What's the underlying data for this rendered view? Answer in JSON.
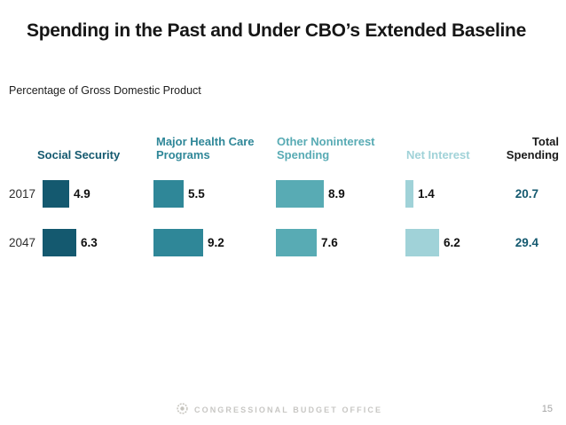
{
  "chart_data": {
    "type": "bar",
    "orientation": "horizontal",
    "title": "Spending in the Past and Under CBO’s Extended Baseline",
    "unit_label": "Percentage of Gross Domestic Product",
    "categories": [
      "2017",
      "2047"
    ],
    "series": [
      {
        "name": "Social Security",
        "color": "#14596F",
        "values": [
          4.9,
          6.3
        ]
      },
      {
        "name": "Major Health Care Programs",
        "color": "#2F8798",
        "values": [
          5.5,
          9.2
        ]
      },
      {
        "name": "Other Noninterest Spending",
        "color": "#58ABB4",
        "values": [
          8.9,
          7.6
        ]
      },
      {
        "name": "Net Interest",
        "color": "#A0D2D8",
        "values": [
          1.4,
          6.2
        ]
      }
    ],
    "totals": {
      "name": "Total Spending",
      "color": "#14596F",
      "values": [
        20.7,
        29.4
      ]
    },
    "value_labels": true,
    "axes": "none",
    "legend": "none"
  },
  "footer": {
    "org_name": "CONGRESSIONAL BUDGET OFFICE",
    "page_number": "15"
  }
}
